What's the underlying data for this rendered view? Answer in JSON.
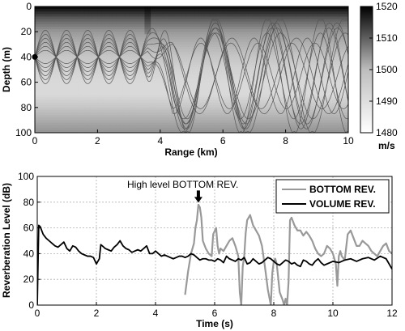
{
  "chart_data": [
    {
      "type": "heatmap",
      "xlabel": "Range (km)",
      "ylabel": "Depth (m)",
      "xlim": [
        0,
        10
      ],
      "ylim": [
        0,
        100
      ],
      "y_reversed": true,
      "x_ticks": [
        "0",
        "2",
        "4",
        "6",
        "8",
        "10"
      ],
      "y_ticks": [
        "0",
        "20",
        "40",
        "60",
        "80",
        "100"
      ],
      "colorbar": {
        "min": 1480,
        "max": 1520,
        "ticks": [
          "1480",
          "1490",
          "1500",
          "1510",
          "1520"
        ],
        "unit": "m/s",
        "colormap": "gray (white = low, black = high)"
      },
      "source": {
        "range_km": 0,
        "depth_m": 40
      },
      "sound_speed_profile": {
        "note": "sound speed vs depth, darkest near surface and seafloor, lightest near 50–70 m; dark intrusion near 3.6 km",
        "depth_m": [
          0,
          10,
          20,
          30,
          40,
          50,
          60,
          70,
          80,
          90,
          100
        ],
        "speed_ms_flat_region": [
          1520,
          1505,
          1496,
          1492,
          1489,
          1487,
          1486,
          1486,
          1489,
          1493,
          1497
        ],
        "intrusion": {
          "center_range_km": 3.6,
          "max_depth_m": 25
        }
      },
      "rays": {
        "count": 12,
        "launch_angles_deg": [
          -6,
          -5,
          -4,
          -3,
          -2,
          -1,
          1,
          2,
          3,
          4,
          5,
          6
        ],
        "note": "ray paths trapped between ~20 m and ~60 m before 3.6 km, then refract over full water column"
      }
    },
    {
      "type": "line",
      "xlabel": "Time (s)",
      "ylabel": "Reverberation Level (dB)",
      "xlim": [
        0,
        12
      ],
      "ylim": [
        0,
        100
      ],
      "x_ticks": [
        "0",
        "2",
        "4",
        "6",
        "8",
        "10",
        "12"
      ],
      "y_ticks": [
        "0",
        "20",
        "40",
        "60",
        "80",
        "100"
      ],
      "grid": true,
      "legend": "top-right",
      "annotation": {
        "text": "High level BOTTOM REV.",
        "arrow_to": {
          "x": 5.45,
          "y": 79
        }
      },
      "series": [
        {
          "name": "BOTTOM REV.",
          "color": "#999999",
          "x": [
            5.0,
            5.1,
            5.2,
            5.3,
            5.35,
            5.4,
            5.45,
            5.5,
            5.55,
            5.6,
            5.7,
            5.8,
            5.9,
            5.95,
            6.05,
            6.1,
            6.15,
            6.2,
            6.3,
            6.4,
            6.5,
            6.6,
            6.7,
            6.8,
            6.85,
            6.9,
            6.95,
            7.0,
            7.05,
            7.1,
            7.2,
            7.3,
            7.4,
            7.5,
            7.6,
            7.7,
            7.8,
            7.9,
            7.95,
            8.0,
            8.05,
            8.1,
            8.2,
            8.3,
            8.35,
            8.4,
            8.45,
            8.5,
            8.55,
            8.6,
            8.7,
            8.8,
            8.9,
            9.0,
            9.1,
            9.2,
            9.3,
            9.4,
            9.5,
            9.6,
            9.7,
            9.8,
            9.9,
            10.0,
            10.1,
            10.15,
            10.2,
            10.25,
            10.3,
            10.4,
            10.5,
            10.6,
            10.7,
            10.8,
            10.9,
            11.0,
            11.1,
            11.2,
            11.3,
            11.4,
            11.5,
            11.6,
            11.7,
            11.8,
            11.9,
            12.0
          ],
          "values": [
            8,
            26,
            40,
            48,
            60,
            66,
            78,
            76,
            68,
            50,
            44,
            40,
            38,
            55,
            60,
            46,
            40,
            44,
            42,
            46,
            50,
            52,
            46,
            38,
            10,
            0,
            30,
            38,
            56,
            66,
            70,
            62,
            58,
            54,
            46,
            30,
            12,
            0,
            25,
            34,
            36,
            32,
            10,
            4,
            0,
            5,
            0,
            18,
            66,
            68,
            62,
            58,
            58,
            54,
            57,
            54,
            50,
            44,
            40,
            38,
            40,
            46,
            44,
            40,
            32,
            15,
            38,
            42,
            38,
            35,
            55,
            58,
            52,
            46,
            46,
            50,
            48,
            46,
            42,
            40,
            38,
            42,
            46,
            48,
            42,
            40
          ]
        },
        {
          "name": "VOLUME REV.",
          "color": "#000000",
          "x": [
            0.0,
            0.05,
            0.1,
            0.2,
            0.3,
            0.4,
            0.5,
            0.6,
            0.7,
            0.8,
            0.9,
            1.0,
            1.1,
            1.2,
            1.3,
            1.4,
            1.5,
            1.6,
            1.7,
            1.8,
            1.9,
            2.0,
            2.05,
            2.1,
            2.15,
            2.2,
            2.3,
            2.4,
            2.5,
            2.6,
            2.7,
            2.8,
            2.9,
            3.0,
            3.1,
            3.2,
            3.3,
            3.4,
            3.5,
            3.6,
            3.7,
            3.8,
            3.9,
            4.0,
            4.1,
            4.2,
            4.3,
            4.4,
            4.5,
            4.6,
            4.7,
            4.8,
            4.9,
            5.0,
            5.1,
            5.2,
            5.3,
            5.4,
            5.5,
            5.6,
            5.7,
            5.8,
            5.9,
            6.0,
            6.1,
            6.2,
            6.3,
            6.4,
            6.5,
            6.6,
            6.7,
            6.8,
            6.9,
            7.0,
            7.1,
            7.2,
            7.3,
            7.4,
            7.5,
            7.6,
            7.7,
            7.8,
            7.9,
            8.0,
            8.1,
            8.2,
            8.3,
            8.4,
            8.5,
            8.6,
            8.7,
            8.8,
            8.9,
            9.0,
            9.1,
            9.2,
            9.3,
            9.4,
            9.5,
            9.6,
            9.7,
            9.8,
            9.9,
            10.0,
            10.2,
            10.4,
            10.6,
            10.8,
            11.0,
            11.2,
            11.4,
            11.6,
            11.8,
            12.0
          ],
          "values": [
            0,
            62,
            61,
            55,
            52,
            50,
            48,
            46,
            45,
            47,
            49,
            44,
            42,
            46,
            45,
            42,
            40,
            39,
            38,
            38,
            37,
            32,
            34,
            36,
            47,
            46,
            44,
            43,
            42,
            45,
            47,
            50,
            46,
            44,
            43,
            41,
            42,
            43,
            42,
            44,
            46,
            40,
            40,
            42,
            40,
            38,
            39,
            38,
            37,
            36,
            37,
            38,
            38,
            37,
            38,
            40,
            39,
            37,
            35,
            36,
            36,
            35,
            35,
            34,
            36,
            35,
            33,
            38,
            36,
            35,
            34,
            36,
            35,
            37,
            32,
            33,
            36,
            34,
            32,
            33,
            35,
            37,
            36,
            34,
            32,
            31,
            33,
            35,
            34,
            32,
            33,
            31,
            30,
            35,
            34,
            32,
            31,
            34,
            36,
            33,
            31,
            32,
            33,
            34,
            33,
            35,
            36,
            34,
            36,
            37,
            35,
            38,
            36,
            28
          ]
        }
      ]
    }
  ]
}
